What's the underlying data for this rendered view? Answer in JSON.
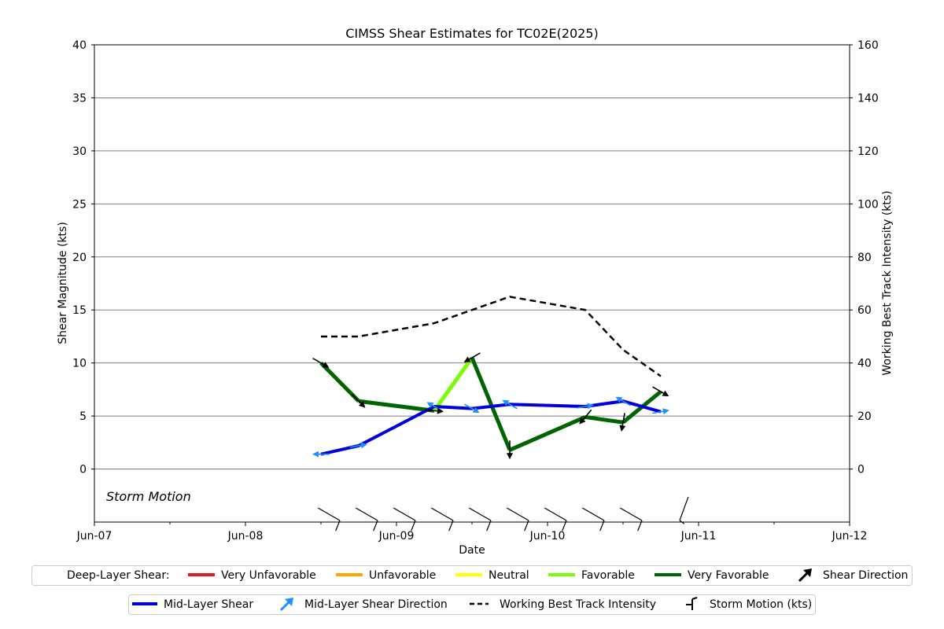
{
  "chart_data": {
    "type": "line",
    "title": "CIMSS Shear Estimates for TC02E(2025)",
    "xlabel": "Date",
    "ylabel": "Shear Magnitude (kts)",
    "y2label": "Working Best Track Intensity (kts)",
    "xlim": [
      "2025-06-07",
      "2025-06-12"
    ],
    "x_ticks": [
      "Jun-07",
      "Jun-08",
      "Jun-09",
      "Jun-10",
      "Jun-11",
      "Jun-12"
    ],
    "ylim": [
      -5,
      40
    ],
    "y_ticks": [
      0,
      5,
      10,
      15,
      20,
      25,
      30,
      35,
      40
    ],
    "y2lim": [
      -20,
      160
    ],
    "y2_ticks": [
      0,
      20,
      40,
      60,
      80,
      100,
      120,
      140,
      160
    ],
    "grid": "horizontal at y ticks",
    "storm_motion_label": "Storm Motion",
    "category_colors": {
      "Very Unfavorable": "#e31a1c",
      "Unfavorable": "#ffa500",
      "Neutral": "#ffff00",
      "Favorable": "#7cfc00",
      "Very Favorable": "#006400"
    },
    "series": [
      {
        "name": "Deep-Layer Shear",
        "axis": "left",
        "color": "#006400",
        "x": [
          "2025-06-08 12:00",
          "2025-06-08 18:00",
          "2025-06-09 06:00",
          "2025-06-09 12:00",
          "2025-06-09 18:00",
          "2025-06-10 06:00",
          "2025-06-10 12:00",
          "2025-06-10 18:00"
        ],
        "values": [
          10.0,
          6.4,
          5.5,
          10.5,
          1.8,
          4.9,
          4.4,
          7.3
        ],
        "categories": [
          "Very Favorable",
          "Very Favorable",
          "Very Favorable",
          "Favorable",
          "Very Favorable",
          "Very Favorable",
          "Very Favorable",
          "Very Favorable"
        ],
        "direction_toward_deg": [
          120,
          135,
          95,
          240,
          180,
          220,
          190,
          120
        ]
      },
      {
        "name": "Mid-Layer Shear",
        "axis": "left",
        "color": "#0000dd",
        "arrow_color": "#1e90ff",
        "x": [
          "2025-06-08 12:00",
          "2025-06-08 18:00",
          "2025-06-09 06:00",
          "2025-06-09 12:00",
          "2025-06-09 18:00",
          "2025-06-10 06:00",
          "2025-06-10 12:00",
          "2025-06-10 18:00"
        ],
        "values": [
          1.4,
          2.2,
          5.9,
          5.7,
          6.1,
          5.9,
          6.4,
          5.4
        ],
        "direction_toward_deg": [
          270,
          80,
          300,
          120,
          300,
          80,
          300,
          80
        ]
      },
      {
        "name": "Working Best Track Intensity",
        "axis": "right",
        "color": "#000000",
        "dashed": true,
        "x": [
          "2025-06-08 12:00",
          "2025-06-08 18:00",
          "2025-06-09 06:00",
          "2025-06-09 18:00",
          "2025-06-10 06:00",
          "2025-06-10 12:00",
          "2025-06-10 18:00"
        ],
        "values": [
          50,
          50,
          55,
          65,
          60,
          45,
          35
        ]
      }
    ],
    "storm_motion": {
      "x": [
        "2025-06-08 15:00",
        "2025-06-08 21:00",
        "2025-06-09 03:00",
        "2025-06-09 09:00",
        "2025-06-09 15:00",
        "2025-06-09 21:00",
        "2025-06-10 03:00",
        "2025-06-10 09:00",
        "2025-06-10 15:00",
        "2025-06-10 21:00"
      ],
      "direction_toward_deg": [
        300,
        300,
        300,
        300,
        300,
        300,
        300,
        300,
        300,
        20
      ],
      "speed_kts": [
        10,
        10,
        10,
        10,
        10,
        10,
        10,
        10,
        10,
        5
      ]
    },
    "legend": {
      "row1": {
        "label": "Deep-Layer Shear:",
        "items": [
          "Very Unfavorable",
          "Unfavorable",
          "Neutral",
          "Favorable",
          "Very Favorable",
          "Shear Direction"
        ]
      },
      "row2": {
        "items": [
          "Mid-Layer Shear",
          "Mid-Layer Shear Direction",
          "Working Best Track Intensity",
          "Storm Motion (kts)"
        ]
      }
    }
  }
}
